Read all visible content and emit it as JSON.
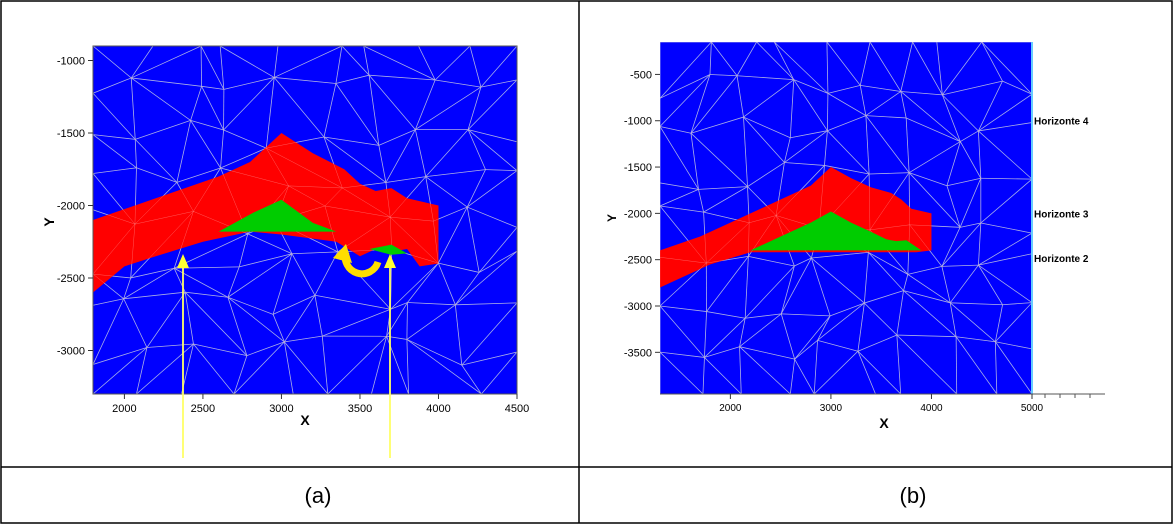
{
  "panels": [
    {
      "id": "a",
      "caption": "(a)",
      "x_label": "X",
      "y_label": "Y",
      "x_ticks": [
        2000,
        2500,
        3000,
        3500,
        4000,
        4500
      ],
      "y_ticks": [
        -1000,
        -1500,
        -2000,
        -2500,
        -3000
      ],
      "x_range": [
        1800,
        4500
      ],
      "y_range": [
        -3300,
        -900
      ],
      "tick_labels_x": [
        "2000",
        "2500",
        "3000",
        "3500",
        "4000",
        "4500"
      ],
      "tick_labels_y": [
        "-1000",
        "-1500",
        "-2000",
        "-2500",
        "-3000"
      ],
      "red_polygon": [
        [
          1800,
          -2100
        ],
        [
          2200,
          -1950
        ],
        [
          2600,
          -1800
        ],
        [
          2800,
          -1700
        ],
        [
          3000,
          -1500
        ],
        [
          3200,
          -1640
        ],
        [
          3400,
          -1750
        ],
        [
          3500,
          -1850
        ],
        [
          3600,
          -1900
        ],
        [
          3700,
          -1880
        ],
        [
          3800,
          -1950
        ],
        [
          4000,
          -2000
        ],
        [
          4000,
          -2400
        ],
        [
          3880,
          -2420
        ],
        [
          3800,
          -2300
        ],
        [
          3700,
          -2320
        ],
        [
          3600,
          -2300
        ],
        [
          3500,
          -2350
        ],
        [
          3350,
          -2250
        ],
        [
          3000,
          -2200
        ],
        [
          2800,
          -2180
        ],
        [
          2500,
          -2250
        ],
        [
          2200,
          -2350
        ],
        [
          2000,
          -2420
        ],
        [
          1800,
          -2600
        ]
      ],
      "green_polygons": [
        [
          [
            2600,
            -2180
          ],
          [
            2820,
            -2050
          ],
          [
            3000,
            -1960
          ],
          [
            3200,
            -2120
          ],
          [
            3350,
            -2180
          ]
        ],
        [
          [
            3560,
            -2300
          ],
          [
            3700,
            -2270
          ],
          [
            3800,
            -2330
          ],
          [
            3700,
            -2340
          ]
        ]
      ],
      "colors": {
        "background": "#0000ff",
        "red": "#ff0000",
        "green": "#00cc00",
        "mesh": "#8ab4ff",
        "arrow": "#ffff66",
        "rotation": "#ffdd00"
      }
    },
    {
      "id": "b",
      "caption": "(b)",
      "x_label": "X",
      "y_label": "Y",
      "x_ticks": [
        2000,
        3000,
        4000,
        5000
      ],
      "y_ticks": [
        -500,
        -1000,
        -1500,
        -2000,
        -2500,
        -3000,
        -3500
      ],
      "x_range": [
        1300,
        5000
      ],
      "y_range": [
        -3950,
        -150
      ],
      "tick_labels_x": [
        "2000",
        "3000",
        "4000",
        "5000"
      ],
      "tick_labels_y": [
        "-500",
        "-1000",
        "-1500",
        "-2000",
        "-2500",
        "-3000",
        "-3500"
      ],
      "horizons": [
        {
          "label": "Horizonte 4",
          "y": -1000
        },
        {
          "label": "Horizonte 3",
          "y": -2000
        },
        {
          "label": "Horizonte 2",
          "y": -2480
        }
      ],
      "red_polygon": [
        [
          1300,
          -2400
        ],
        [
          1700,
          -2250
        ],
        [
          2100,
          -2050
        ],
        [
          2500,
          -1850
        ],
        [
          2800,
          -1700
        ],
        [
          3000,
          -1500
        ],
        [
          3200,
          -1620
        ],
        [
          3400,
          -1720
        ],
        [
          3600,
          -1780
        ],
        [
          3700,
          -1850
        ],
        [
          3800,
          -1950
        ],
        [
          4000,
          -2000
        ],
        [
          4000,
          -2400
        ],
        [
          3850,
          -2420
        ],
        [
          2200,
          -2420
        ],
        [
          1800,
          -2550
        ],
        [
          1500,
          -2700
        ],
        [
          1300,
          -2800
        ]
      ],
      "green_polygon": [
        [
          2200,
          -2400
        ],
        [
          2500,
          -2250
        ],
        [
          2800,
          -2100
        ],
        [
          3000,
          -1980
        ],
        [
          3200,
          -2100
        ],
        [
          3400,
          -2200
        ],
        [
          3550,
          -2280
        ],
        [
          3650,
          -2300
        ],
        [
          3750,
          -2290
        ],
        [
          3900,
          -2400
        ]
      ],
      "colors": {
        "background": "#0000ff",
        "red": "#ff0000",
        "green": "#00cc00",
        "mesh": "#8ab4ff",
        "edge": "#66ccff"
      }
    }
  ]
}
